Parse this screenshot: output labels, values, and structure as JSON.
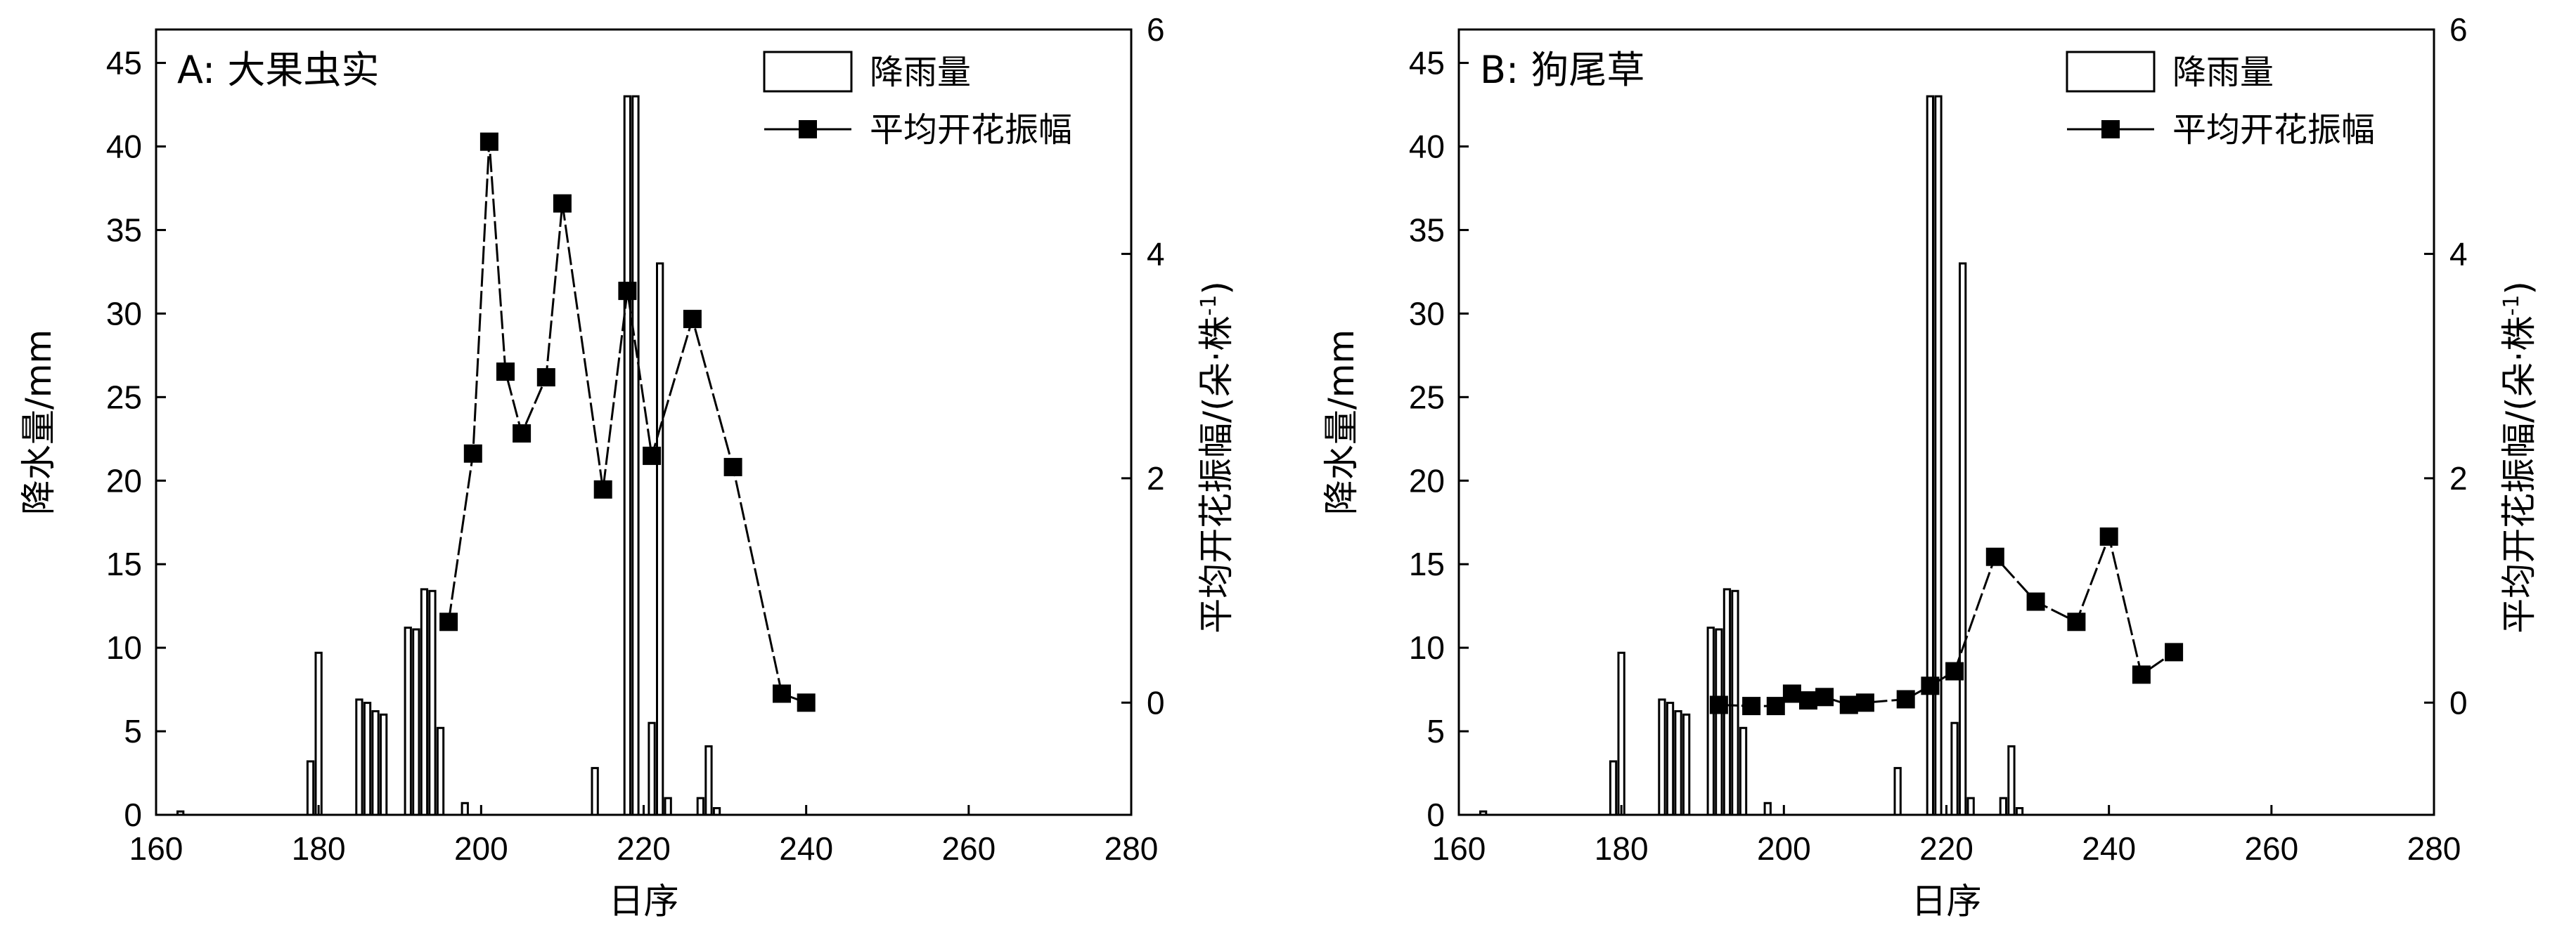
{
  "chart_data": [
    {
      "type": "bar+line",
      "title": "A: 大果虫实",
      "xlabel": "日序",
      "ylabel": "降水量/mm",
      "ylabel_right": "平均开花振幅/(朵·株",
      "ylabel_right_sup": "-1",
      "ylabel_right_close": ")",
      "xlim": [
        160,
        280
      ],
      "x_ticks": [
        160,
        180,
        200,
        220,
        240,
        260,
        280
      ],
      "ylim": [
        0,
        47
      ],
      "y_ticks": [
        0,
        5,
        10,
        15,
        20,
        25,
        30,
        35,
        40,
        45
      ],
      "y2lim": [
        -1,
        6
      ],
      "y2_ticks": [
        0,
        2,
        4,
        6
      ],
      "grid": false,
      "legend_position": "top-right",
      "legend": [
        "降雨量",
        "平均开花振幅"
      ],
      "series": [
        {
          "name": "降雨量",
          "kind": "bar",
          "axis": "left",
          "x": [
            163,
            179,
            180,
            185,
            186,
            187,
            188,
            191,
            192,
            193,
            194,
            195,
            198,
            214,
            218,
            219,
            221,
            222,
            223,
            227,
            228,
            229
          ],
          "values": [
            0.2,
            3.2,
            9.7,
            6.9,
            6.7,
            6.2,
            6.0,
            11.2,
            11.1,
            13.5,
            13.4,
            5.2,
            0.7,
            2.8,
            43.0,
            43.0,
            5.5,
            33.0,
            1.0,
            1.0,
            4.1,
            0.4
          ]
        },
        {
          "name": "平均开花振幅",
          "kind": "line",
          "axis": "right",
          "x": [
            196,
            199,
            201,
            203,
            205,
            208,
            210,
            215,
            218,
            221,
            226,
            231,
            237,
            240
          ],
          "values": [
            0.72,
            2.22,
            5.0,
            2.95,
            2.4,
            2.9,
            4.45,
            1.9,
            3.67,
            2.2,
            3.42,
            2.1,
            0.08,
            0.0
          ]
        }
      ]
    },
    {
      "type": "bar+line",
      "title": "B: 狗尾草",
      "xlabel": "日序",
      "ylabel": "降水量/mm",
      "ylabel_right": "平均开花振幅/(朵·株",
      "ylabel_right_sup": "-1",
      "ylabel_right_close": ")",
      "xlim": [
        160,
        280
      ],
      "x_ticks": [
        160,
        180,
        200,
        220,
        240,
        260,
        280
      ],
      "ylim": [
        0,
        47
      ],
      "y_ticks": [
        0,
        5,
        10,
        15,
        20,
        25,
        30,
        35,
        40,
        45
      ],
      "y2lim": [
        -1,
        6
      ],
      "y2_ticks": [
        0,
        2,
        4,
        6
      ],
      "grid": false,
      "legend_position": "top-right",
      "legend": [
        "降雨量",
        "平均开花振幅"
      ],
      "series": [
        {
          "name": "降雨量",
          "kind": "bar",
          "axis": "left",
          "x": [
            163,
            179,
            180,
            185,
            186,
            187,
            188,
            191,
            192,
            193,
            194,
            195,
            198,
            214,
            218,
            219,
            221,
            222,
            223,
            227,
            228,
            229
          ],
          "values": [
            0.2,
            3.2,
            9.7,
            6.9,
            6.7,
            6.2,
            6.0,
            11.2,
            11.1,
            13.5,
            13.4,
            5.2,
            0.7,
            2.8,
            43.0,
            43.0,
            5.5,
            33.0,
            1.0,
            1.0,
            4.1,
            0.4
          ]
        },
        {
          "name": "平均开花振幅",
          "kind": "line",
          "axis": "right",
          "x": [
            192,
            196,
            199,
            201,
            203,
            205,
            208,
            210,
            215,
            218,
            221,
            226,
            231,
            236,
            240,
            244,
            248
          ],
          "values": [
            -0.02,
            -0.03,
            -0.03,
            0.08,
            0.02,
            0.05,
            -0.02,
            0.0,
            0.03,
            0.15,
            0.28,
            1.3,
            0.9,
            0.72,
            1.48,
            0.25,
            0.45
          ]
        }
      ]
    }
  ],
  "colors": {
    "background": "#ffffff",
    "ink": "#000000",
    "bar_fill": "#ffffff"
  }
}
